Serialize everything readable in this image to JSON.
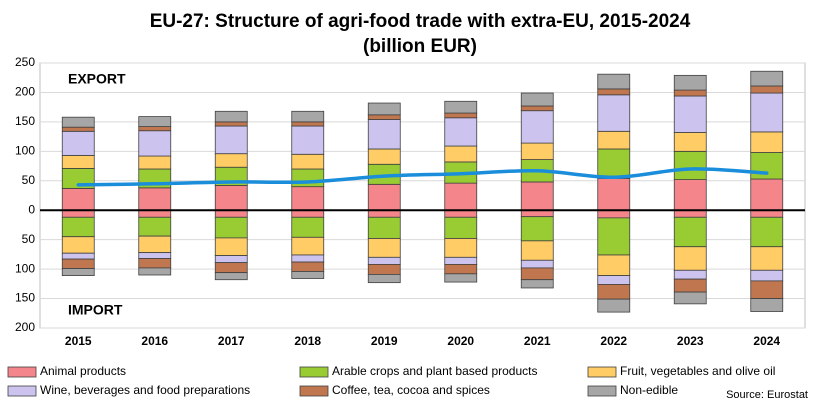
{
  "chart_data": {
    "type": "bar",
    "stacked": true,
    "title": "EU-27: Structure of agri-food trade with extra-EU, 2015-2024",
    "subtitle": "(billion EUR)",
    "annotations": [
      "EXPORT",
      "IMPORT"
    ],
    "source": "Source: Eurostat",
    "categories": [
      "2015",
      "2016",
      "2017",
      "2018",
      "2019",
      "2020",
      "2021",
      "2022",
      "2023",
      "2024"
    ],
    "series": [
      {
        "name": "Animal products",
        "color": "#f4858a",
        "values": [
          37,
          38,
          42,
          40,
          44,
          46,
          48,
          54,
          52,
          53
        ],
        "import_values": [
          -12,
          -12,
          -12,
          -12,
          -12,
          -12,
          -11,
          -13,
          -12,
          -12
        ]
      },
      {
        "name": "Arable crops and plant based products",
        "color": "#99cc33",
        "values": [
          34,
          32,
          31,
          30,
          34,
          36,
          38,
          50,
          48,
          45
        ],
        "import_values": [
          -33,
          -32,
          -35,
          -34,
          -36,
          -36,
          -41,
          -63,
          -50,
          -50
        ]
      },
      {
        "name": "Fruit, vegetables and olive oil",
        "color": "#ffcc66",
        "values": [
          22,
          22,
          23,
          25,
          26,
          27,
          28,
          30,
          32,
          35
        ],
        "import_values": [
          -28,
          -28,
          -30,
          -30,
          -32,
          -32,
          -33,
          -35,
          -40,
          -40
        ]
      },
      {
        "name": "Wine, beverages and food preparations",
        "color": "#ccc3ee",
        "values": [
          41,
          43,
          47,
          48,
          50,
          48,
          55,
          62,
          62,
          66
        ],
        "import_values": [
          -10,
          -10,
          -12,
          -12,
          -12,
          -12,
          -13,
          -15,
          -15,
          -18
        ]
      },
      {
        "name": "Coffee, tea, cocoa and spices",
        "color": "#c0774f",
        "values": [
          7,
          7,
          7,
          7,
          8,
          8,
          8,
          10,
          10,
          12
        ],
        "import_values": [
          -16,
          -16,
          -17,
          -16,
          -17,
          -16,
          -20,
          -25,
          -22,
          -30
        ]
      },
      {
        "name": "Non-edible",
        "color": "#a6a6a6",
        "values": [
          17,
          17,
          18,
          18,
          20,
          20,
          22,
          25,
          25,
          25
        ],
        "import_values": [
          -12,
          -12,
          -12,
          -12,
          -14,
          -14,
          -14,
          -22,
          -20,
          -22
        ]
      }
    ],
    "line": {
      "color": "#1a8ddb",
      "values": [
        43,
        45,
        48,
        48,
        58,
        62,
        67,
        56,
        70,
        63
      ]
    },
    "ylim": [
      -200,
      250
    ],
    "yticks": [
      {
        "value": -200,
        "label": "200"
      },
      {
        "value": -150,
        "label": "150"
      },
      {
        "value": -100,
        "label": "100"
      },
      {
        "value": -50,
        "label": "50"
      },
      0,
      50,
      100,
      150,
      200,
      250
    ],
    "grid": true
  }
}
